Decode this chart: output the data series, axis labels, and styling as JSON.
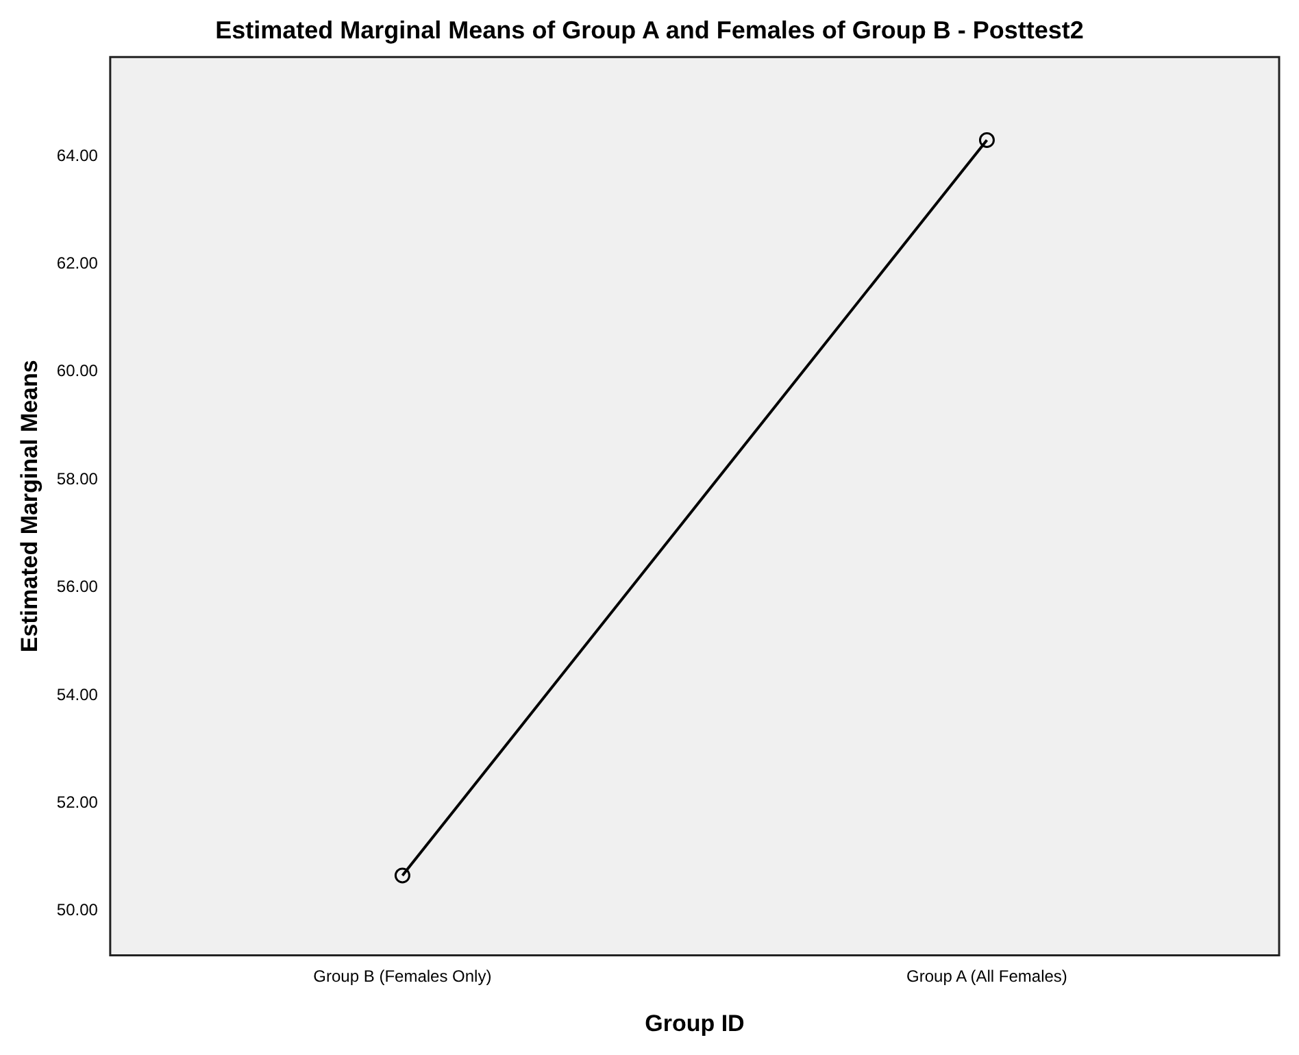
{
  "chart_data": {
    "type": "line",
    "title": "Estimated Marginal Means of Group A and Females of Group B - Posttest2",
    "xlabel": "Group ID",
    "ylabel": "Estimated Marginal Means",
    "categories": [
      "Group B (Females Only)",
      "Group A (All Females)"
    ],
    "series": [
      {
        "color": "#000000",
        "values": [
          50.66,
          64.3
        ]
      }
    ],
    "ylim": [
      49.18,
      65.84
    ],
    "yticks": [
      {
        "value": 50,
        "label": "50.00"
      },
      {
        "value": 52,
        "label": "52.00"
      },
      {
        "value": 54,
        "label": "54.00"
      },
      {
        "value": 56,
        "label": "56.00"
      },
      {
        "value": 58,
        "label": "58.00"
      },
      {
        "value": 60,
        "label": "60.00"
      },
      {
        "value": 62,
        "label": "62.00"
      },
      {
        "value": 64,
        "label": "64.00"
      }
    ],
    "grid": false,
    "legend": false,
    "marker": "circle",
    "line_style": "solid"
  }
}
